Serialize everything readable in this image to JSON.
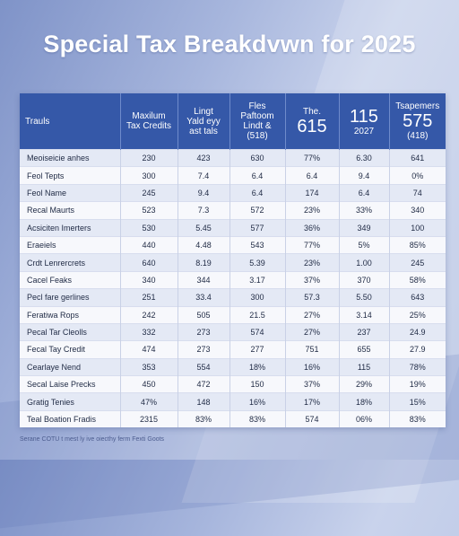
{
  "title": "Special Tax Breakdvwn for 2025",
  "headers": [
    {
      "lines": [
        "Trauls"
      ]
    },
    {
      "lines": [
        "Maxilum",
        "Tax Credits"
      ]
    },
    {
      "lines": [
        "Lingt",
        "Yald eyy",
        "ast tals"
      ]
    },
    {
      "lines": [
        "Fles",
        "Paftoom",
        "Lindt &",
        "(518)"
      ]
    },
    {
      "big": "615",
      "lines": [
        "The."
      ],
      "sub": ""
    },
    {
      "big": "115",
      "lines": [],
      "sub": "2027"
    },
    {
      "big": "575",
      "lines": [
        "Tsapemers"
      ],
      "sub": "(418)"
    }
  ],
  "rows": [
    [
      "Meoiseicie anhes",
      "230",
      "423",
      "630",
      "77%",
      "6.30",
      "641"
    ],
    [
      "Feol Tepts",
      "300",
      "7.4",
      "6.4",
      "6.4",
      "9.4",
      "0%"
    ],
    [
      "Feol Name",
      "245",
      "9.4",
      "6.4",
      "174",
      "6.4",
      "74"
    ],
    [
      "Recal Maurts",
      "523",
      "7.3",
      "572",
      "23%",
      "33%",
      "340"
    ],
    [
      "Acsiciten Imerters",
      "530",
      "5.45",
      "577",
      "36%",
      "349",
      "100"
    ],
    [
      "Eraeiels",
      "440",
      "4.48",
      "543",
      "77%",
      "5%",
      "85%"
    ],
    [
      "Crdt Lenrercrets",
      "640",
      "8.19",
      "5.39",
      "23%",
      "1.00",
      "245"
    ],
    [
      "Cacel Feaks",
      "340",
      "344",
      "3.17",
      "37%",
      "370",
      "58%"
    ],
    [
      "Pecl fare gerlines",
      "251",
      "33.4",
      "300",
      "57.3",
      "5.50",
      "643"
    ],
    [
      "Feratiwa Rops",
      "242",
      "505",
      "21.5",
      "27%",
      "3.14",
      "25%"
    ],
    [
      "Pecal Tar Cleolls",
      "332",
      "273",
      "574",
      "27%",
      "237",
      "24.9"
    ],
    [
      "Fecal Tay Credit",
      "474",
      "273",
      "277",
      "751",
      "655",
      "27.9"
    ],
    [
      "Cearlaye Nend",
      "353",
      "554",
      "18%",
      "16%",
      "115",
      "78%"
    ],
    [
      "Secal Laise Precks",
      "450",
      "472",
      "150",
      "37%",
      "29%",
      "19%"
    ],
    [
      "Gratig Tenies",
      "47%",
      "148",
      "16%",
      "17%",
      "18%",
      "15%"
    ],
    [
      "Teal Boation Fradis",
      "2315",
      "83%",
      "83%",
      "574",
      "06%",
      "83%"
    ]
  ],
  "footer": "Serane COTU t mest ly ive oiecthy ferm Fexti Goots"
}
